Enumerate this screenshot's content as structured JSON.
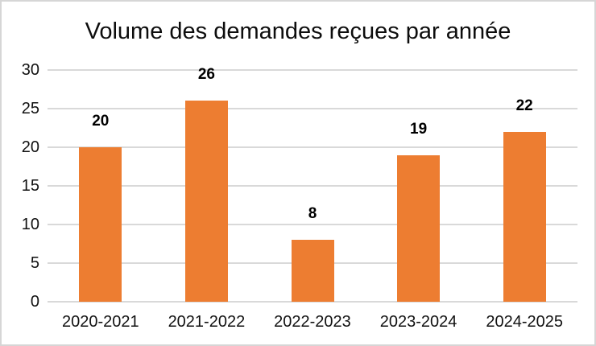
{
  "chart_data": {
    "type": "bar",
    "title": "Volume des demandes reçues par année",
    "categories": [
      "2020-2021",
      "2021-2022",
      "2022-2023",
      "2023-2024",
      "2024-2025"
    ],
    "values": [
      20,
      26,
      8,
      19,
      22
    ],
    "data_labels": [
      20,
      26,
      8,
      19,
      22
    ],
    "xlabel": "",
    "ylabel": "",
    "ylim": [
      0,
      30
    ],
    "yticks": [
      0,
      5,
      10,
      15,
      20,
      25,
      30
    ],
    "grid": true,
    "legend": "none",
    "colors": {
      "bar": "#ED7D31",
      "gridline": "#D9D9D9",
      "text": "#111111",
      "title_text": "#0D0D0D",
      "frame_border": "#D6D6D6",
      "background": "#FFFFFF"
    }
  }
}
